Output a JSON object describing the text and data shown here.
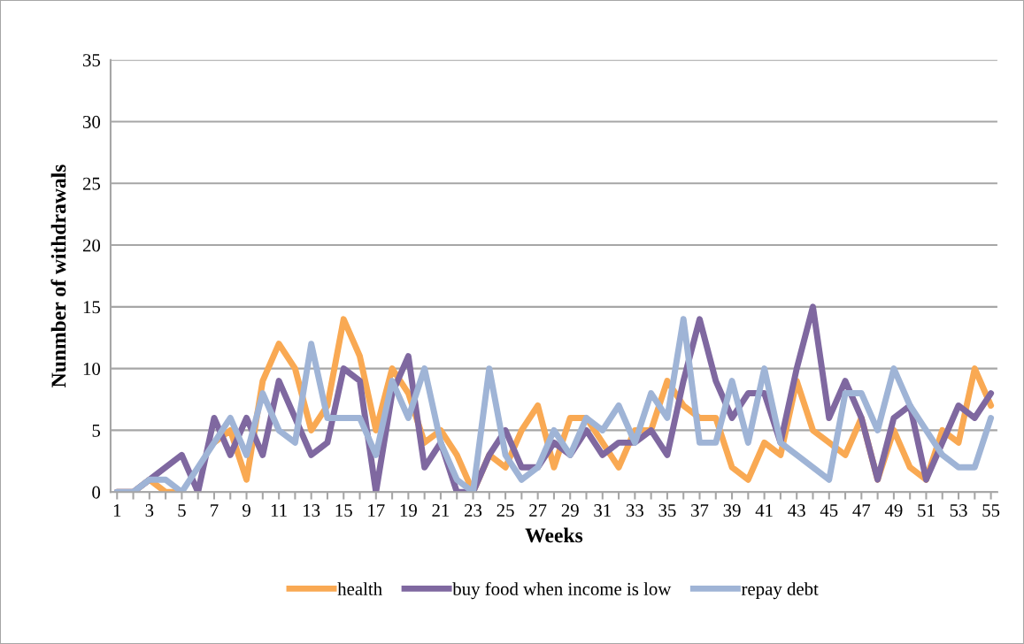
{
  "chart_data": {
    "type": "line",
    "xlabel": "Weeks",
    "ylabel": "Nunmber of withdrawals",
    "categories": [
      "1",
      null,
      "3",
      null,
      "5",
      null,
      "7",
      null,
      "9",
      null,
      "11",
      null,
      "13",
      null,
      "15",
      null,
      "17",
      null,
      "19",
      null,
      "21",
      null,
      "23",
      null,
      "25",
      null,
      "27",
      null,
      "29",
      null,
      "31",
      null,
      "33",
      null,
      "35",
      null,
      "37",
      null,
      "39",
      null,
      "41",
      null,
      "43",
      null,
      "45",
      null,
      "47",
      null,
      "49",
      null,
      "51",
      null,
      "53",
      null,
      "55"
    ],
    "series": [
      {
        "name": "health",
        "color": "#f9a953",
        "values": [
          0,
          0,
          1,
          0,
          0,
          null,
          4,
          5,
          1,
          9,
          12,
          10,
          5,
          7,
          14,
          11,
          5,
          10,
          8,
          4,
          5,
          3,
          0,
          3,
          2,
          5,
          7,
          2,
          6,
          6,
          4,
          2,
          5,
          5,
          9,
          7,
          6,
          6,
          2,
          1,
          4,
          3,
          9,
          5,
          4,
          3,
          6,
          1,
          5,
          2,
          1,
          5,
          4,
          10,
          7
        ]
      },
      {
        "name": "buy food when income is low",
        "color": "#7f68a0",
        "values": [
          0,
          0,
          1,
          2,
          3,
          0,
          6,
          3,
          6,
          3,
          9,
          6,
          3,
          4,
          10,
          9,
          0,
          8,
          11,
          2,
          4,
          0,
          0,
          3,
          5,
          2,
          2,
          4,
          3,
          5,
          3,
          4,
          4,
          5,
          3,
          9,
          14,
          9,
          6,
          8,
          8,
          4,
          10,
          15,
          6,
          9,
          6,
          1,
          6,
          7,
          1,
          4,
          7,
          6,
          8
        ]
      },
      {
        "name": "repay debt",
        "color": "#9fb4d6",
        "values": [
          0,
          0,
          1,
          1,
          0,
          2,
          4,
          6,
          3,
          8,
          5,
          4,
          12,
          6,
          6,
          6,
          3,
          9,
          6,
          10,
          4,
          1,
          0,
          10,
          3,
          1,
          2,
          5,
          3,
          6,
          5,
          7,
          4,
          8,
          6,
          14,
          4,
          4,
          9,
          4,
          10,
          4,
          3,
          2,
          1,
          8,
          8,
          5,
          10,
          7,
          5,
          3,
          2,
          2,
          6
        ]
      }
    ],
    "ylim": [
      0,
      35
    ],
    "yticks": [
      0,
      5,
      10,
      15,
      20,
      25,
      30,
      35
    ],
    "grid": "y",
    "legend": "bottom",
    "marker": "none",
    "line_style": "solid"
  }
}
